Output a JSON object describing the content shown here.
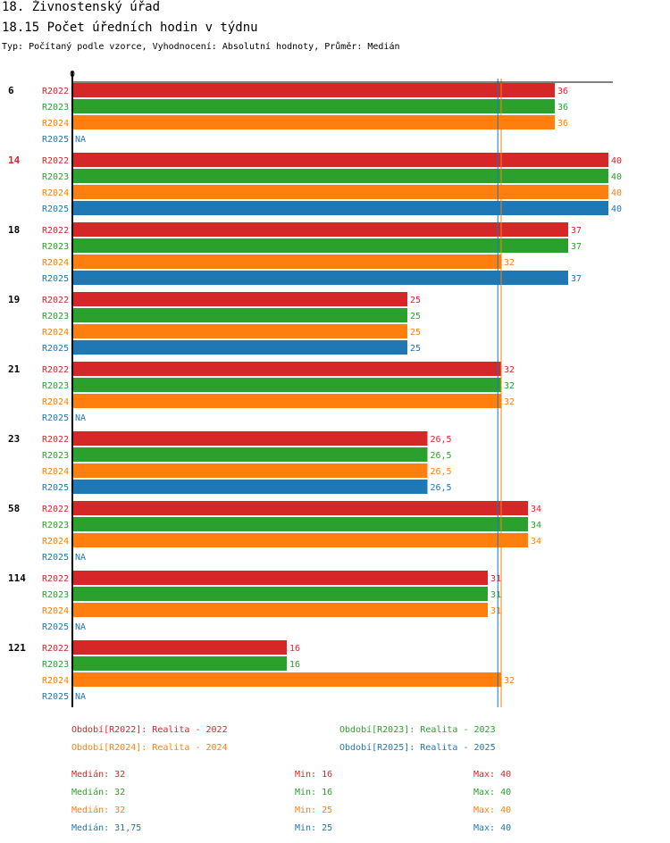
{
  "chart_data": {
    "type": "bar",
    "orientation": "horizontal",
    "title": "18. Živnostenský úřad",
    "subtitle": "18.15 Počet úředních hodin v týdnu",
    "note": "Typ: Počítaný podle vzorce, Vyhodnocení: Absolutní hodnoty, Průměr: Medián",
    "axis_zero_label": "0",
    "xlim": [
      0,
      40
    ],
    "na_label": "NA",
    "groups": [
      {
        "label": "6",
        "highlight": false,
        "values": [
          36,
          36,
          36,
          null
        ],
        "labels": [
          "36",
          "36",
          "36",
          "NA"
        ]
      },
      {
        "label": "14",
        "highlight": true,
        "values": [
          40,
          40,
          40,
          40
        ],
        "labels": [
          "40",
          "40",
          "40",
          "40"
        ]
      },
      {
        "label": "18",
        "highlight": false,
        "values": [
          37,
          37,
          32,
          37
        ],
        "labels": [
          "37",
          "37",
          "32",
          "37"
        ]
      },
      {
        "label": "19",
        "highlight": false,
        "values": [
          25,
          25,
          25,
          25
        ],
        "labels": [
          "25",
          "25",
          "25",
          "25"
        ]
      },
      {
        "label": "21",
        "highlight": false,
        "values": [
          32,
          32,
          32,
          null
        ],
        "labels": [
          "32",
          "32",
          "32",
          "NA"
        ]
      },
      {
        "label": "23",
        "highlight": false,
        "values": [
          26.5,
          26.5,
          26.5,
          26.5
        ],
        "labels": [
          "26,5",
          "26,5",
          "26,5",
          "26,5"
        ]
      },
      {
        "label": "58",
        "highlight": false,
        "values": [
          34,
          34,
          34,
          null
        ],
        "labels": [
          "34",
          "34",
          "34",
          "NA"
        ]
      },
      {
        "label": "114",
        "highlight": false,
        "values": [
          31,
          31,
          31,
          null
        ],
        "labels": [
          "31",
          "31",
          "31",
          "NA"
        ]
      },
      {
        "label": "121",
        "highlight": false,
        "values": [
          16,
          16,
          32,
          null
        ],
        "labels": [
          "16",
          "16",
          "32",
          "NA"
        ]
      }
    ],
    "series": [
      {
        "name": "R2022",
        "color": "#d62728",
        "legend": "Období[R2022]: Realita - 2022",
        "median": 32,
        "stats": {
          "median": "Medián: 32",
          "min": "Min: 16",
          "max": "Max: 40"
        }
      },
      {
        "name": "R2023",
        "color": "#2ca02c",
        "legend": "Období[R2023]: Realita - 2023",
        "median": 32,
        "stats": {
          "median": "Medián: 32",
          "min": "Min: 16",
          "max": "Max: 40"
        }
      },
      {
        "name": "R2024",
        "color": "#ff7f0e",
        "legend": "Období[R2024]: Realita - 2024",
        "median": 32,
        "stats": {
          "median": "Medián: 32",
          "min": "Min: 25",
          "max": "Max: 40"
        }
      },
      {
        "name": "R2025",
        "color": "#1f77b4",
        "legend": "Období[R2025]: Realita - 2025",
        "median": 31.75,
        "stats": {
          "median": "Medián: 31,75",
          "min": "Min: 25",
          "max": "Max: 40"
        }
      }
    ],
    "highlight_color": "#d62728"
  }
}
